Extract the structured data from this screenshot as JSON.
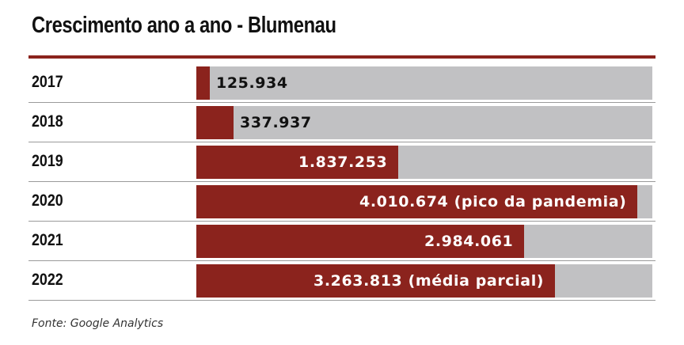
{
  "chart_data": {
    "type": "bar",
    "orientation": "horizontal",
    "title": "Crescimento ano a ano - Blumenau",
    "categories": [
      "2017",
      "2018",
      "2019",
      "2020",
      "2021",
      "2022"
    ],
    "values": [
      125934,
      337937,
      1837253,
      4010674,
      2984061,
      3263813
    ],
    "value_labels": [
      "125.934",
      "337.937",
      "1.837.253",
      "4.010.674 (pico da pandemia)",
      "2.984.061",
      "3.263.813 (média parcial)"
    ],
    "xlim": [
      0,
      4150000
    ],
    "grid": false,
    "legend": "none",
    "colors": {
      "bar": "#8b231d",
      "track": "#c1c1c3",
      "rule": "#8b231d"
    }
  },
  "source": "Fonte: Google Analytics"
}
